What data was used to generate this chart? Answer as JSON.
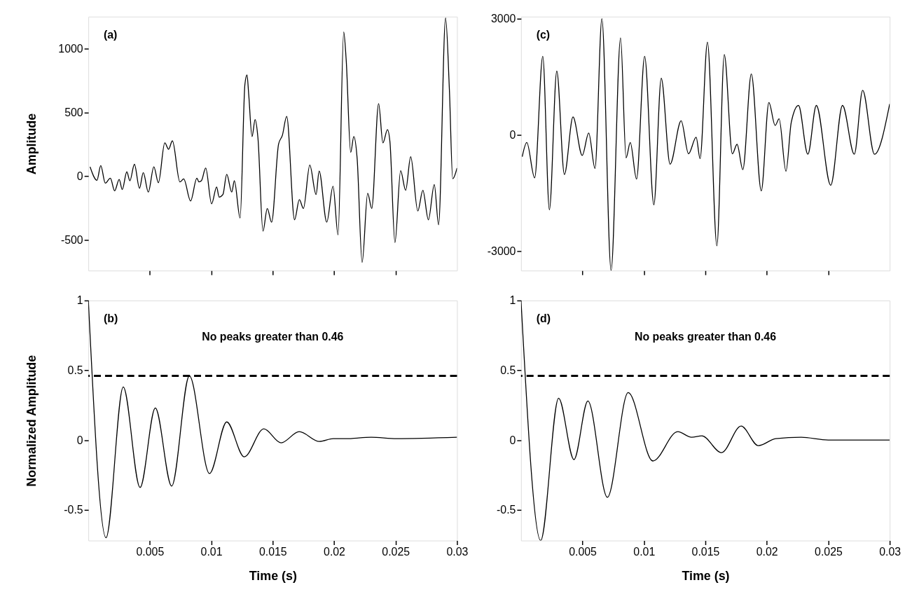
{
  "chart_data": [
    {
      "type": "line",
      "ylabel": "Amplitude",
      "xlim": [
        0,
        0.03
      ],
      "xticks": [
        0.005,
        0.01,
        0.015,
        0.02,
        0.025
      ],
      "ylim": [
        -740,
        1250
      ],
      "yticks": [
        -500,
        0,
        500,
        1000
      ],
      "tick_labels": "y",
      "grid": false,
      "annotations": [
        "(a)"
      ],
      "x": [
        0.00014,
        0.0007,
        0.00101,
        0.00138,
        0.00179,
        0.00214,
        0.00251,
        0.00276,
        0.00313,
        0.00338,
        0.00375,
        0.00416,
        0.00447,
        0.00488,
        0.00533,
        0.0057,
        0.00622,
        0.00653,
        0.00684,
        0.00745,
        0.00776,
        0.00832,
        0.00883,
        0.009,
        0.0092,
        0.00955,
        0.01003,
        0.01044,
        0.01064,
        0.01095,
        0.01126,
        0.01167,
        0.01188,
        0.01235,
        0.01274,
        0.01291,
        0.01305,
        0.01332,
        0.01357,
        0.0138,
        0.01421,
        0.01456,
        0.01491,
        0.01548,
        0.01579,
        0.01614,
        0.01678,
        0.01717,
        0.0175,
        0.01802,
        0.01853,
        0.01878,
        0.0194,
        0.01991,
        0.02032,
        0.02078,
        0.02098,
        0.02135,
        0.0216,
        0.02187,
        0.02228,
        0.02273,
        0.02306,
        0.02362,
        0.02397,
        0.02434,
        0.02454,
        0.02495,
        0.02541,
        0.02582,
        0.02623,
        0.02681,
        0.02722,
        0.02767,
        0.02815,
        0.0285,
        0.02907,
        0.02938,
        0.02965,
        0.03
      ],
      "series": [
        {
          "color": "#000000",
          "values": [
            73,
            -32,
            83,
            -55,
            -16,
            -115,
            -26,
            -105,
            34,
            -36,
            93,
            -95,
            28,
            -125,
            73,
            -51,
            261,
            211,
            277,
            -45,
            -22,
            -194,
            -16,
            -45,
            -36,
            63,
            -217,
            -85,
            -164,
            -144,
            14,
            -125,
            -36,
            -328,
            719,
            794,
            640,
            310,
            443,
            300,
            -431,
            -253,
            -361,
            251,
            320,
            468,
            -342,
            -184,
            -253,
            87,
            -144,
            40,
            -361,
            -79,
            -460,
            1130,
            913,
            186,
            310,
            142,
            -676,
            -134,
            -253,
            569,
            261,
            364,
            271,
            -520,
            43,
            -111,
            152,
            -273,
            -111,
            -342,
            -65,
            -381,
            1239,
            676,
            -20,
            63
          ]
        }
      ]
    },
    {
      "type": "line",
      "xlim": [
        0,
        0.03
      ],
      "xticks": [
        0.005,
        0.01,
        0.015,
        0.02,
        0.025
      ],
      "ylim": [
        -3500,
        3050
      ],
      "yticks": [
        -3000,
        0,
        3000
      ],
      "tick_labels": "y",
      "grid": false,
      "annotations": [
        "(c)"
      ],
      "x": [
        0.0001,
        0.00047,
        0.00111,
        0.00177,
        0.00231,
        0.00291,
        0.00353,
        0.00423,
        0.00498,
        0.00551,
        0.00602,
        0.00658,
        0.00733,
        0.0081,
        0.00855,
        0.00889,
        0.0094,
        0.01006,
        0.01081,
        0.01141,
        0.01213,
        0.01303,
        0.01363,
        0.01425,
        0.01457,
        0.01517,
        0.01594,
        0.01654,
        0.0172,
        0.01758,
        0.01805,
        0.01874,
        0.01955,
        0.02017,
        0.02068,
        0.021,
        0.02156,
        0.02199,
        0.02258,
        0.02334,
        0.02403,
        0.0252,
        0.02616,
        0.02712,
        0.0278,
        0.02876,
        0.03
      ],
      "series": [
        {
          "color": "#000000",
          "values": [
            -560,
            -195,
            -1108,
            2028,
            -1933,
            1645,
            -1020,
            463,
            -530,
            48,
            -864,
            3000,
            -3500,
            2503,
            -591,
            -195,
            -1138,
            2028,
            -1803,
            1462,
            -756,
            365,
            -487,
            -61,
            -609,
            2393,
            -2862,
            2071,
            -487,
            -243,
            -896,
            1571,
            -1444,
            834,
            243,
            414,
            -938,
            323,
            760,
            -500,
            760,
            -1300,
            760,
            -500,
            1150,
            -500,
            800
          ]
        }
      ]
    },
    {
      "type": "line",
      "xlabel": "Time (s)",
      "ylabel": "Normalized Amplitude",
      "xlim": [
        0,
        0.03
      ],
      "xticks": [
        0.005,
        0.01,
        0.015,
        0.02,
        0.025,
        0.03
      ],
      "ylim": [
        -0.72,
        1
      ],
      "yticks": [
        -0.5,
        0,
        0.5,
        1
      ],
      "grid": false,
      "annotations": [
        "(b)",
        "No peaks greater than 0.46"
      ],
      "ref_lines": [
        {
          "axis": "y",
          "value": 0.46,
          "line_style": "dashed",
          "color": "#000000"
        }
      ],
      "x": [
        0,
        0.00144,
        0.00284,
        0.00421,
        0.00545,
        0.00678,
        0.00822,
        0.00986,
        0.01126,
        0.01268,
        0.01428,
        0.01568,
        0.01716,
        0.0188,
        0.01993,
        0.02096,
        0.02302,
        0.02507,
        0.03
      ],
      "series": [
        {
          "color": "#000000",
          "values": [
            1,
            -0.7,
            0.38,
            -0.34,
            0.23,
            -0.33,
            0.46,
            -0.24,
            0.13,
            -0.12,
            0.08,
            -0.02,
            0.06,
            -0.01,
            0.01,
            0.01,
            0.02,
            0.01,
            0.02
          ]
        }
      ]
    },
    {
      "type": "line",
      "xlabel": "Time (s)",
      "xlim": [
        0,
        0.03
      ],
      "xticks": [
        0.005,
        0.01,
        0.015,
        0.02,
        0.025,
        0.03
      ],
      "ylim": [
        -0.72,
        1
      ],
      "yticks": [
        -0.5,
        0,
        0.5,
        1
      ],
      "grid": false,
      "annotations": [
        "(d)",
        "No peaks greater than 0.46"
      ],
      "ref_lines": [
        {
          "axis": "y",
          "value": 0.46,
          "line_style": "dashed",
          "color": "#000000"
        }
      ],
      "x": [
        0,
        0.0016,
        0.00306,
        0.00431,
        0.00544,
        0.00703,
        0.00872,
        0.01073,
        0.01275,
        0.01388,
        0.01472,
        0.01631,
        0.01791,
        0.01931,
        0.02072,
        0.0228,
        0.025,
        0.03
      ],
      "series": [
        {
          "color": "#000000",
          "values": [
            1,
            -0.72,
            0.3,
            -0.14,
            0.28,
            -0.41,
            0.34,
            -0.15,
            0.06,
            0.02,
            0.03,
            -0.09,
            0.1,
            -0.04,
            0.01,
            0.02,
            0.0,
            0.0
          ]
        }
      ]
    }
  ]
}
